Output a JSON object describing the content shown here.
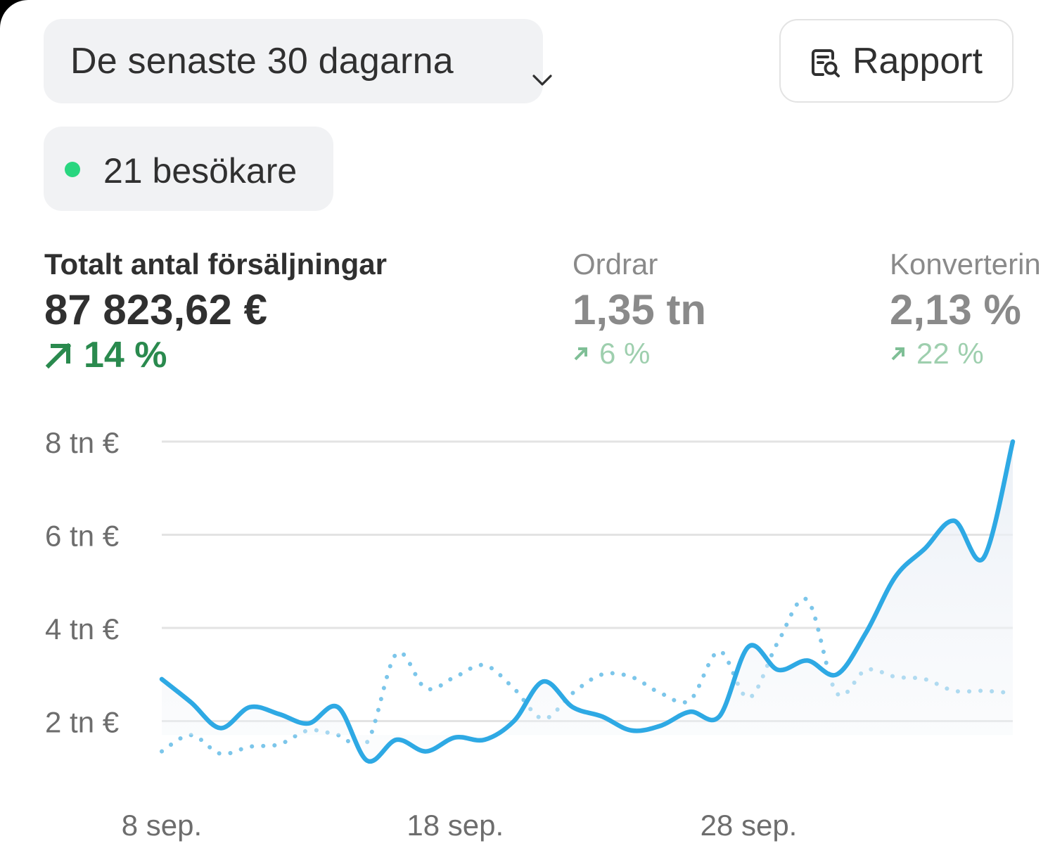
{
  "date_range": {
    "label": "De senaste 30 dagarna"
  },
  "report_button": {
    "label": "Rapport",
    "icon": "report-search-icon"
  },
  "live_visitors": {
    "label": "21 besökare",
    "status_color": "#29d67f"
  },
  "metrics": [
    {
      "title": "Totalt antal försäljningar",
      "value": "87 823,62 €",
      "change": "14 %",
      "trend": "up",
      "active": true
    },
    {
      "title": "Ordrar",
      "value": "1,35 tn",
      "change": "6 %",
      "trend": "up",
      "active": false
    },
    {
      "title": "Konverterin",
      "value": "2,13 %",
      "change": "22 %",
      "trend": "up",
      "active": false
    }
  ],
  "colors": {
    "accent": "#2ea9e4",
    "positive": "#2a8a4e",
    "positive_muted": "#9ecfae",
    "chip_bg": "#f1f2f4"
  },
  "chart_data": {
    "type": "line",
    "title": "",
    "xlabel": "",
    "ylabel": "",
    "ylim": [
      0,
      8
    ],
    "y_ticks": [
      {
        "value": 2,
        "label": "2 tn €"
      },
      {
        "value": 4,
        "label": "4 tn €"
      },
      {
        "value": 6,
        "label": "6 tn €"
      },
      {
        "value": 8,
        "label": "8 tn €"
      }
    ],
    "x_ticks": [
      {
        "day": 0,
        "label": "8 sep."
      },
      {
        "day": 10,
        "label": "18 sep."
      },
      {
        "day": 20,
        "label": "28 sep."
      }
    ],
    "x_days": [
      0,
      1,
      2,
      3,
      4,
      5,
      6,
      7,
      8,
      9,
      10,
      11,
      12,
      13,
      14,
      15,
      16,
      17,
      18,
      19,
      20,
      21,
      22,
      23,
      24,
      25,
      26,
      27,
      28,
      29
    ],
    "grid": true,
    "legend": "none",
    "series": [
      {
        "style": "solid",
        "area": true,
        "values": [
          2.9,
          2.4,
          1.85,
          2.3,
          2.15,
          1.95,
          2.3,
          1.15,
          1.6,
          1.35,
          1.65,
          1.6,
          2.0,
          2.85,
          2.3,
          2.1,
          1.8,
          1.9,
          2.2,
          2.1,
          3.6,
          3.1,
          3.3,
          3.0,
          3.9,
          5.1,
          5.7,
          6.3,
          5.5,
          8.0
        ]
      },
      {
        "style": "dotted",
        "area": false,
        "values": [
          1.35,
          1.7,
          1.3,
          1.45,
          1.5,
          1.8,
          1.7,
          1.55,
          3.45,
          2.7,
          2.95,
          3.2,
          2.7,
          2.05,
          2.6,
          3.0,
          2.95,
          2.6,
          2.45,
          3.5,
          2.5,
          3.7,
          4.6,
          2.6,
          3.1,
          2.95,
          2.9,
          2.65,
          2.65,
          2.6
        ]
      }
    ]
  }
}
